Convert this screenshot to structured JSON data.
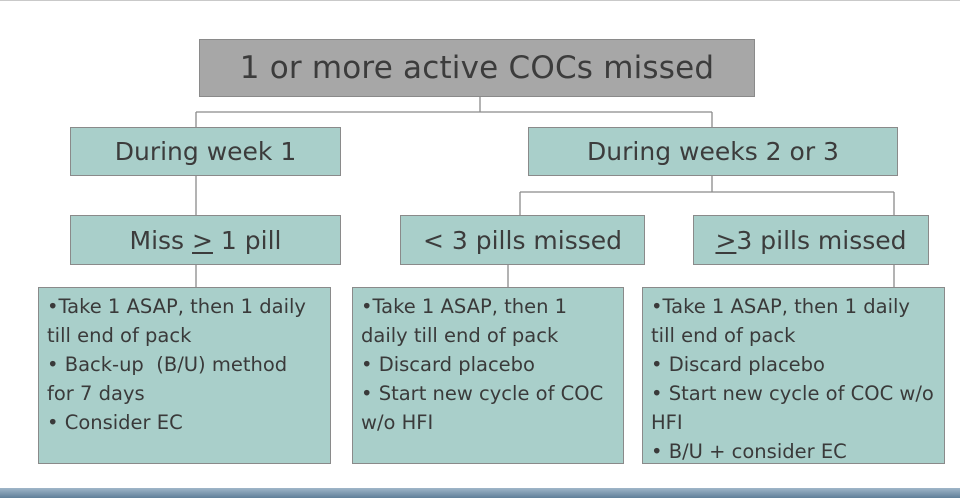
{
  "root": {
    "label": "1 or more active COCs missed"
  },
  "week1": {
    "label": "During week 1",
    "condition": {
      "prefix": "Miss ",
      "symbol": ">",
      "suffix": " 1 pill"
    },
    "instructions": [
      "•Take 1 ASAP, then 1 daily",
      "till end of pack",
      "• Back-up  (B/U) method",
      "for 7 days",
      "• Consider EC"
    ]
  },
  "weeks23": {
    "label": "During weeks 2 or 3",
    "less3": {
      "label": "< 3 pills missed",
      "instructions": [
        "•Take 1 ASAP, then 1",
        "daily till end of pack",
        "• Discard placebo",
        "• Start new cycle of COC",
        "w/o HFI"
      ]
    },
    "more3": {
      "label": {
        "symbol": ">",
        "suffix": "3 pills missed"
      },
      "instructions": [
        "•Take 1 ASAP, then 1 daily",
        "till end of pack",
        "• Discard placebo",
        "• Start new cycle of COC w/o",
        "HFI",
        "• B/U + consider EC"
      ]
    }
  },
  "colors": {
    "root_fill": "#a7a7a7",
    "node_fill": "#a9cfca",
    "border": "#8a8a8a",
    "text": "#3c3c3c"
  }
}
